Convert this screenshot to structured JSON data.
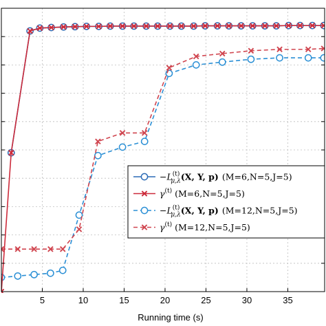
{
  "chart_data": {
    "type": "line",
    "title": "",
    "xlabel": "Running time (s)",
    "ylabel": "",
    "xlim": [
      0,
      39.5
    ],
    "ylim": [
      0,
      1
    ],
    "x_ticks": [
      5,
      10,
      15,
      20,
      25,
      30,
      35
    ],
    "grid": true,
    "legend_position": "center-right",
    "series": [
      {
        "name": "−L(t)μ,λ(X, Y, p) (M=6,N=5,J=5)",
        "color": "#2a6ab5",
        "line_style": "solid",
        "marker": "circle",
        "x": [
          1.2,
          3.5,
          4.7,
          6.1,
          7.6,
          9.0,
          10.4,
          11.9,
          13.3,
          14.8,
          16.2,
          17.7,
          19.1,
          20.6,
          22.0,
          23.5,
          24.9,
          26.4,
          27.8,
          29.3,
          30.7,
          32.2,
          33.6,
          35.1,
          36.5,
          38.0,
          39.4
        ],
        "y": [
          0.49,
          0.92,
          0.93,
          0.932,
          0.934,
          0.935,
          0.936,
          0.936,
          0.937,
          0.937,
          0.937,
          0.937,
          0.937,
          0.937,
          0.937,
          0.937,
          0.938,
          0.938,
          0.938,
          0.938,
          0.938,
          0.938,
          0.938,
          0.939,
          0.939,
          0.939,
          0.939
        ]
      },
      {
        "name": "γ(t) (M=6,N=5,J=5)",
        "color": "#cc2a3a",
        "line_style": "solid",
        "marker": "x",
        "x": [
          0.0,
          1.2,
          3.5,
          4.7,
          6.1,
          7.6,
          9.0,
          10.4,
          11.9,
          13.3,
          14.8,
          16.2,
          17.7,
          19.1,
          20.6,
          22.0,
          23.5,
          24.9,
          26.4,
          27.8,
          29.3,
          30.7,
          32.2,
          33.6,
          35.1,
          36.5,
          38.0,
          39.4
        ],
        "y": [
          0.0,
          0.49,
          0.92,
          0.93,
          0.932,
          0.934,
          0.935,
          0.936,
          0.936,
          0.937,
          0.937,
          0.937,
          0.937,
          0.937,
          0.937,
          0.937,
          0.937,
          0.938,
          0.938,
          0.938,
          0.938,
          0.938,
          0.938,
          0.938,
          0.939,
          0.939,
          0.939,
          0.939
        ]
      },
      {
        "name": "−L(t)μ,λ(X, Y, p) (M=12,N=5,J=5)",
        "color": "#2a8fd5",
        "line_style": "dashed",
        "marker": "circle",
        "x": [
          0.0,
          2.0,
          4.0,
          6.0,
          7.5,
          9.5,
          11.8,
          14.8,
          17.5,
          20.5,
          23.8,
          27.0,
          30.5,
          34.0,
          37.5,
          39.4
        ],
        "y": [
          0.05,
          0.055,
          0.06,
          0.065,
          0.075,
          0.27,
          0.48,
          0.51,
          0.53,
          0.77,
          0.8,
          0.81,
          0.82,
          0.825,
          0.825,
          0.825
        ]
      },
      {
        "name": "γ(t) (M=12,N=5,J=5)",
        "color": "#d0454f",
        "line_style": "dashed",
        "marker": "x",
        "x": [
          0.0,
          2.0,
          4.0,
          6.0,
          7.5,
          9.5,
          11.8,
          14.8,
          17.5,
          20.5,
          23.8,
          27.0,
          30.5,
          34.0,
          37.5,
          39.4
        ],
        "y": [
          0.15,
          0.15,
          0.15,
          0.15,
          0.15,
          0.22,
          0.53,
          0.56,
          0.56,
          0.79,
          0.83,
          0.84,
          0.85,
          0.855,
          0.855,
          0.858
        ]
      }
    ],
    "legend": [
      {
        "label": "−L",
        "sup": "(t)",
        "sub": "μ,λ",
        "math": "(X, Y, p)",
        "params": "(M=6,N=5,J=5)"
      },
      {
        "label": "γ",
        "sup": "(t)",
        "sub": "",
        "math": "",
        "params": "(M=6,N=5,J=5)"
      },
      {
        "label": "−L",
        "sup": "(t)",
        "sub": "μ,λ",
        "math": "(X, Y, p)",
        "params": "(M=12,N=5,J=5)"
      },
      {
        "label": "γ",
        "sup": "(t)",
        "sub": "",
        "math": "",
        "params": "(M=12,N=5,J=5)"
      }
    ]
  }
}
